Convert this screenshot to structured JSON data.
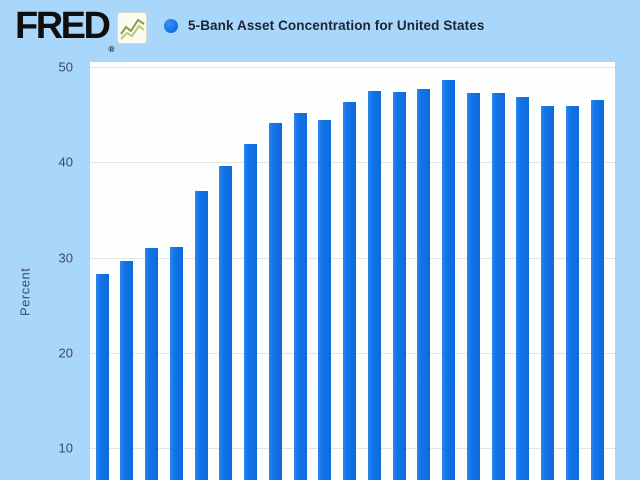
{
  "header": {
    "logo_text": "FRED",
    "logo_registered": "®",
    "legend_dot_color": "#1375e8",
    "series_title": "5-Bank Asset Concentration for United States"
  },
  "chart_data": {
    "type": "bar",
    "title": "5-Bank Asset Concentration for United States",
    "xlabel": "",
    "ylabel": "Percent",
    "yticks": [
      50,
      40,
      30,
      20,
      10
    ],
    "ylim": [
      0,
      50
    ],
    "grid": true,
    "legend_position": "top-left",
    "x_axis_labels_visible": false,
    "values": [
      28.3,
      29.6,
      31.0,
      31.1,
      37.0,
      39.6,
      41.9,
      44.1,
      45.2,
      44.4,
      46.3,
      47.5,
      47.4,
      47.7,
      48.6,
      47.3,
      47.3,
      46.9,
      45.9,
      45.9,
      46.5
    ]
  },
  "colors": {
    "page_bg": "#a9d6fb",
    "bar": "#1375e8",
    "plot_bg": "#fdfefe",
    "grid": "#e4e4e4",
    "axis_text": "#3e4b61",
    "title_text": "#1c2433",
    "logo_text": "#0f0f0f",
    "sparkline_dark": "#8a9a4e",
    "sparkline_light": "#b9c778"
  }
}
